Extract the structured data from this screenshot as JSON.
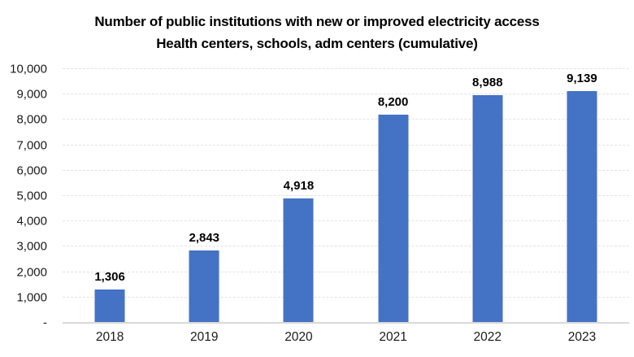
{
  "chart_data": {
    "type": "bar",
    "title": "Number of public institutions with new or improved electricity access",
    "subtitle": "Health centers, schools, adm centers (cumulative)",
    "categories": [
      "2018",
      "2019",
      "2020",
      "2021",
      "2022",
      "2023"
    ],
    "values": [
      1306,
      2843,
      4918,
      8200,
      8988,
      9139
    ],
    "data_labels": [
      "1,306",
      "2,843",
      "4,918",
      "8,200",
      "8,988",
      "9,139"
    ],
    "y_ticks": [
      {
        "value": 10000,
        "label": "10,000"
      },
      {
        "value": 9000,
        "label": "9,000"
      },
      {
        "value": 8000,
        "label": "8,000"
      },
      {
        "value": 7000,
        "label": "7,000"
      },
      {
        "value": 6000,
        "label": "6,000"
      },
      {
        "value": 5000,
        "label": "5,000"
      },
      {
        "value": 4000,
        "label": "4,000"
      },
      {
        "value": 3000,
        "label": "3,000"
      },
      {
        "value": 2000,
        "label": "2,000"
      },
      {
        "value": 1000,
        "label": "1,000"
      },
      {
        "value": 0,
        "label": "-"
      }
    ],
    "ylim": [
      0,
      10000
    ],
    "xlabel": "",
    "ylabel": "",
    "legend": "none",
    "grid": "horizontal-dashed",
    "colors": {
      "bar": "#4472C4",
      "gridline": "#e2e2e2",
      "axis_line": "#d9d9d9",
      "title_text": "#000000",
      "tick_text": "#1a1a1a"
    }
  }
}
